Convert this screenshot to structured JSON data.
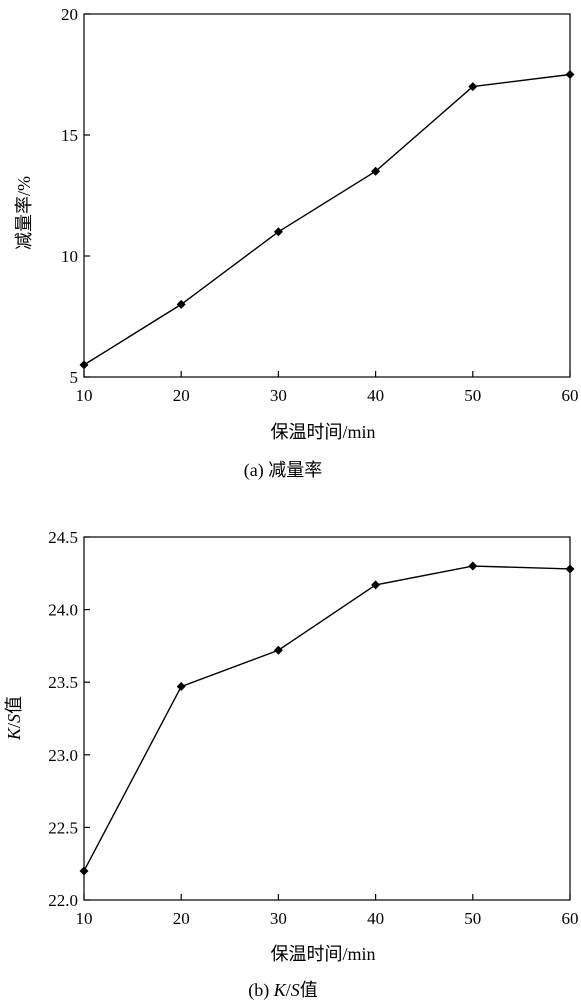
{
  "chart_data": [
    {
      "type": "line",
      "caption": "(a) 减量率",
      "xlabel": "保温时间/min",
      "ylabel": "减量率/%",
      "x": [
        10,
        20,
        30,
        40,
        50,
        60
      ],
      "series": [
        {
          "values": [
            5.5,
            8.0,
            11.0,
            13.5,
            17.0,
            17.5
          ]
        }
      ],
      "xlim": [
        10,
        60
      ],
      "ylim": [
        5,
        20
      ],
      "xticks": [
        "10",
        "20",
        "30",
        "40",
        "50",
        "60"
      ],
      "yticks": [
        "5",
        "10",
        "15",
        "20"
      ],
      "marker": "diamond",
      "grid": false
    },
    {
      "type": "line",
      "caption_prefix": "(b) ",
      "caption_italic": "K",
      "caption_sep": "/",
      "caption_italic2": "S",
      "caption_suffix": "值",
      "xlabel": "保温时间/min",
      "ylabel_italic": "K",
      "ylabel_sep": "/",
      "ylabel_italic2": "S",
      "ylabel_suffix": "值",
      "x": [
        10,
        20,
        30,
        40,
        50,
        60
      ],
      "series": [
        {
          "values": [
            22.2,
            23.47,
            23.72,
            24.17,
            24.3,
            24.28
          ]
        }
      ],
      "xlim": [
        10,
        60
      ],
      "ylim": [
        22.0,
        24.5
      ],
      "xticks": [
        "10",
        "20",
        "30",
        "40",
        "50",
        "60"
      ],
      "yticks": [
        "22.0",
        "22.5",
        "23.0",
        "23.5",
        "24.0",
        "24.5"
      ],
      "marker": "diamond",
      "grid": false
    }
  ]
}
